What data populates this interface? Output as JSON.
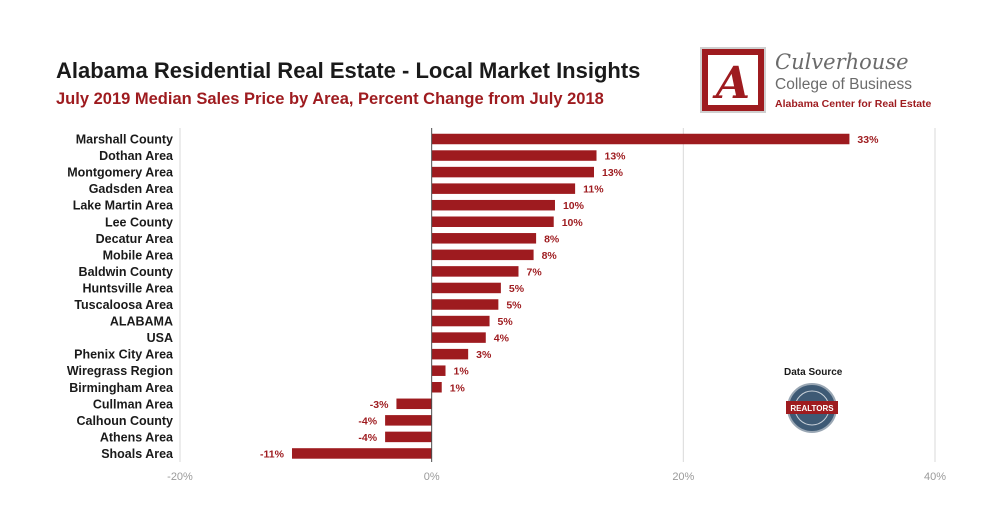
{
  "header": {
    "title": "Alabama Residential Real Estate - Local Market Insights",
    "subtitle": "July 2019 Median Sales Price by Area, Percent Change from July 2018"
  },
  "logo": {
    "letter": "A",
    "name": "Culverhouse",
    "college": "College of Business",
    "center": "Alabama Center for Real Estate"
  },
  "data_source": {
    "label": "Data Source",
    "badge_text": "REALTORS"
  },
  "colors": {
    "bar": "#9e1b1f",
    "label": "#9e1b1f",
    "grid": "#d9d9d9",
    "zero_line": "#4d4d4d",
    "tick": "#9a9a9a"
  },
  "chart_data": {
    "type": "bar",
    "orientation": "horizontal",
    "title": "July 2019 Median Sales Price by Area, Percent Change from July 2018",
    "xlabel": "",
    "ylabel": "",
    "xlim": [
      -20,
      40
    ],
    "xticks": [
      -20,
      0,
      20,
      40
    ],
    "xtick_labels": [
      "-20%",
      "0%",
      "20%",
      "40%"
    ],
    "grid": true,
    "categories": [
      "Marshall County",
      "Dothan Area",
      "Montgomery Area",
      "Gadsden Area",
      "Lake Martin Area",
      "Lee County",
      "Decatur Area",
      "Mobile Area",
      "Baldwin County",
      "Huntsville Area",
      "Tuscaloosa Area",
      "ALABAMA",
      "USA",
      "Phenix City Area",
      "Wiregrass Region",
      "Birmingham Area",
      "Cullman Area",
      "Calhoun County",
      "Athens Area",
      "Shoals Area"
    ],
    "values": [
      33.2,
      13.1,
      12.9,
      11.4,
      9.8,
      9.7,
      8.3,
      8.1,
      6.9,
      5.5,
      5.3,
      4.6,
      4.3,
      2.9,
      1.1,
      0.8,
      -2.8,
      -3.7,
      -3.7,
      -11.1
    ],
    "labels": [
      "33%",
      "13%",
      "13%",
      "11%",
      "10%",
      "10%",
      "8%",
      "8%",
      "7%",
      "5%",
      "5%",
      "5%",
      "4%",
      "3%",
      "1%",
      "1%",
      "-3%",
      "-4%",
      "-4%",
      "-11%"
    ]
  }
}
